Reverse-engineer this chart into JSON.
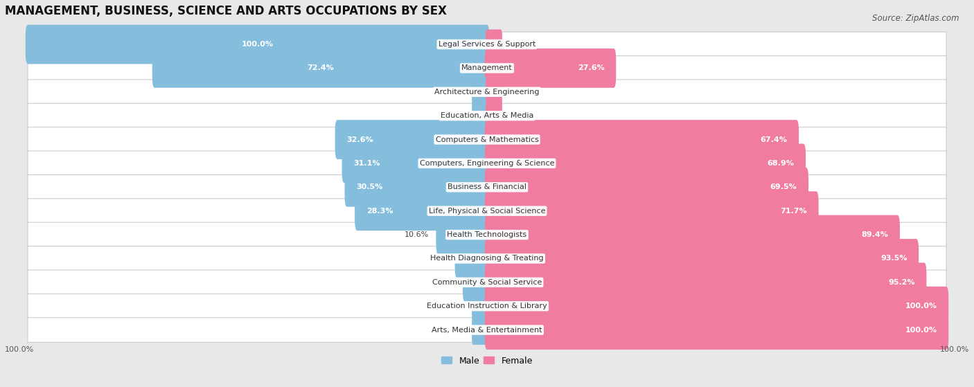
{
  "title": "MANAGEMENT, BUSINESS, SCIENCE AND ARTS OCCUPATIONS BY SEX",
  "source": "Source: ZipAtlas.com",
  "categories": [
    "Legal Services & Support",
    "Management",
    "Architecture & Engineering",
    "Education, Arts & Media",
    "Computers & Mathematics",
    "Computers, Engineering & Science",
    "Business & Financial",
    "Life, Physical & Social Science",
    "Health Technologists",
    "Health Diagnosing & Treating",
    "Community & Social Service",
    "Education Instruction & Library",
    "Arts, Media & Entertainment"
  ],
  "male": [
    100.0,
    72.4,
    0.0,
    0.0,
    32.6,
    31.1,
    30.5,
    28.3,
    10.6,
    6.5,
    4.8,
    0.0,
    0.0
  ],
  "female": [
    0.0,
    27.6,
    0.0,
    0.0,
    67.4,
    68.9,
    69.5,
    71.7,
    89.4,
    93.5,
    95.2,
    100.0,
    100.0
  ],
  "male_color": "#85bedd",
  "female_color": "#f07ca0",
  "male_label": "Male",
  "female_label": "Female",
  "bg_color": "#e8e8e8",
  "bar_bg_color": "#ffffff",
  "title_fontsize": 12,
  "source_fontsize": 8.5,
  "cat_label_fontsize": 8,
  "bar_label_fontsize": 8,
  "legend_fontsize": 9,
  "axis_label_fontsize": 8
}
